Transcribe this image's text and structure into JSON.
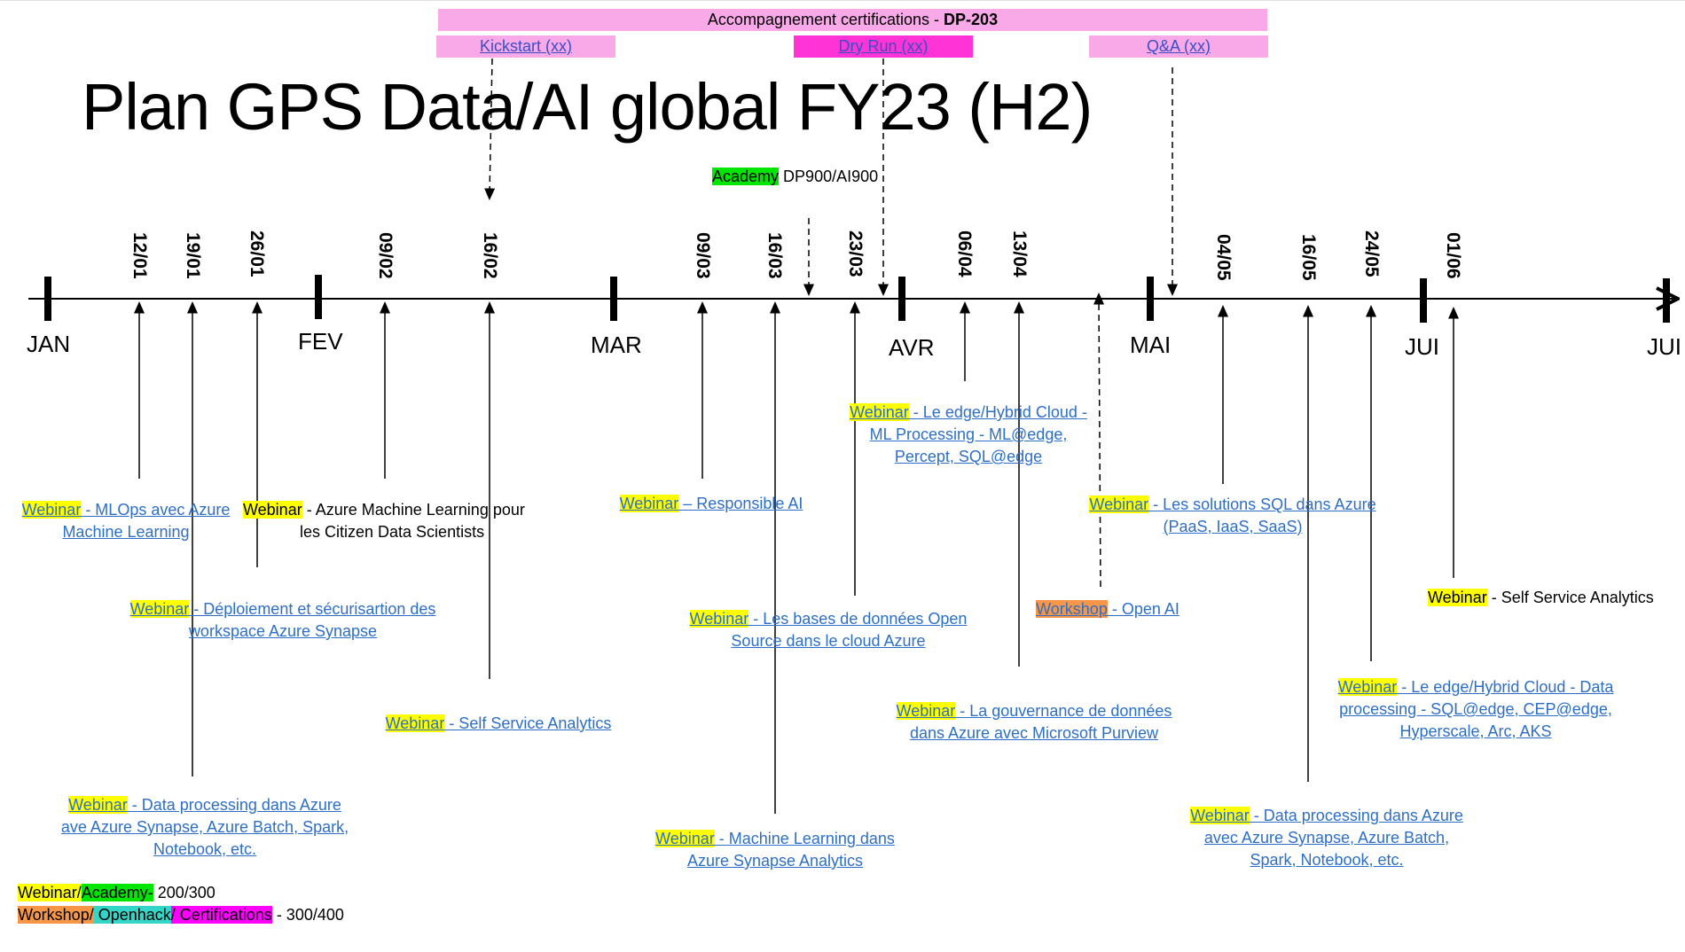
{
  "title": "Plan GPS Data/AI global FY23 (H2)",
  "certification_bar": {
    "label": "Accompagnement certifications - ",
    "code": "DP-203"
  },
  "cert_sessions": [
    {
      "label": "Kickstart (xx)"
    },
    {
      "label": "Dry Run (xx)"
    },
    {
      "label": "Q&A (xx)"
    }
  ],
  "academy_top": {
    "tag": "Academy",
    "text": " DP900/AI900"
  },
  "months": [
    "JAN",
    "FEV",
    "MAR",
    "AVR",
    "MAI",
    "JUI",
    "JUI"
  ],
  "dates": [
    "12/01",
    "19/01",
    "26/01",
    "09/02",
    "16/02",
    "09/03",
    "16/03",
    "23/03",
    "06/04",
    "13/04",
    "04/05",
    "16/05",
    "24/05",
    "01/06"
  ],
  "events": [
    {
      "tag": "Webinar",
      "line1": " - MLOps avec Azure",
      "line2": "Machine Learning"
    },
    {
      "tag": "Webinar",
      "line1": " - Azure Machine Learning pour",
      "line2": "les Citizen Data Scientists"
    },
    {
      "tag": "Webinar",
      "line1": " - Déploiement et sécurisartion des",
      "line2": "workspace Azure Synapse"
    },
    {
      "tag": "Webinar",
      "line1": " - Self Service Analytics"
    },
    {
      "tag": "Webinar",
      "line1": " - Data processing dans Azure",
      "line2": "ave Azure Synapse, Azure Batch, Spark,",
      "line3": "Notebook, etc."
    },
    {
      "tag": "Webinar",
      "line1": " – Responsible AI"
    },
    {
      "tag": "Webinar",
      "line1": " - Les bases de données Open",
      "line2": "Source dans le cloud Azure"
    },
    {
      "tag": "Webinar",
      "line1": " - Machine Learning dans",
      "line2": "Azure Synapse Analytics"
    },
    {
      "tag": "Webinar",
      "line1": " - Le edge/Hybrid Cloud -",
      "line2": "ML Processing - ML@edge,",
      "line3": "Percept, SQL@edge"
    },
    {
      "tag": "Webinar",
      "line1": " - La gouvernance de données",
      "line2": "dans Azure avec Microsoft Purview"
    },
    {
      "tag": "Webinar",
      "line1": " - Les solutions SQL dans Azure",
      "line2": "(PaaS, IaaS, SaaS)"
    },
    {
      "tag": "Workshop",
      "line1": " - Open AI"
    },
    {
      "tag": "Webinar",
      "line1": " - Le edge/Hybrid Cloud - Data",
      "line2": "processing - SQL@edge, CEP@edge,",
      "line3": "Hyperscale, Arc, AKS"
    },
    {
      "tag": "Webinar",
      "line1": " - Data processing dans Azure",
      "line2": "avec Azure Synapse, Azure Batch,",
      "line3": "Spark, Notebook, etc."
    },
    {
      "tag": "Webinar",
      "line1": " - Self Service Analytics"
    }
  ],
  "legend": {
    "row1": {
      "a": "Webinar/",
      "b": "Academy-",
      "c": " 200/300"
    },
    "row2": {
      "a": "Workshop/",
      "b": " Openhack",
      "c": "/ Certifications",
      "d": " - 300/400"
    }
  },
  "colors": {
    "webinar": "#ffff00",
    "academy": "#00e600",
    "workshop": "#f79646",
    "openhack": "#33d6c6",
    "certification": "#ff00ff",
    "cert_bar": "#f9a8e8"
  }
}
